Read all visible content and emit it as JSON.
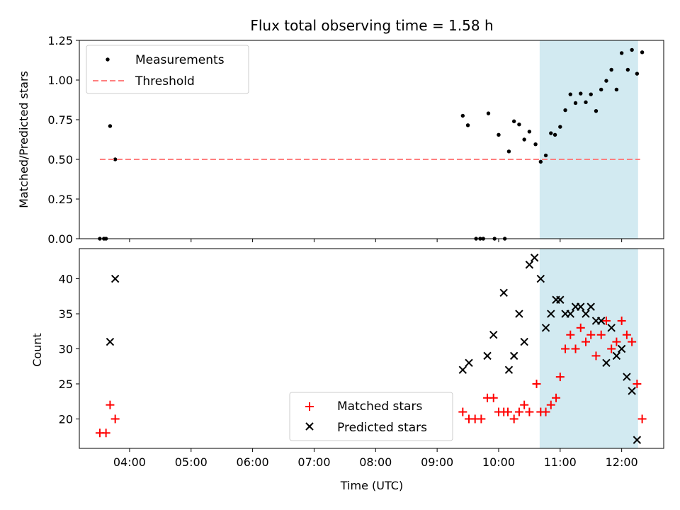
{
  "chart_data": [
    {
      "type": "scatter",
      "title": "Flux total observing time = 1.58 h",
      "xlabel": "",
      "ylabel": "Matched/Predicted stars",
      "ylim": [
        0,
        1.25
      ],
      "yticks": [
        "0.00",
        "0.25",
        "0.50",
        "0.75",
        "1.00",
        "1.25"
      ],
      "xlim": [
        "03:11",
        "12:41"
      ],
      "shaded_interval": [
        "10:40",
        "12:16"
      ],
      "shade_color": "#add8e6",
      "legend": {
        "position": "upper-left",
        "entries": [
          "Measurements",
          "Threshold"
        ]
      },
      "series": [
        {
          "name": "Measurements",
          "marker": "dot",
          "color": "#000000",
          "points": [
            [
              "03:31",
              0.0
            ],
            [
              "03:35",
              0.0
            ],
            [
              "03:37",
              0.0
            ],
            [
              "03:41",
              0.71
            ],
            [
              "03:46",
              0.5
            ],
            [
              "09:25",
              0.775
            ],
            [
              "09:30",
              0.715
            ],
            [
              "09:38",
              0.0
            ],
            [
              "09:42",
              0.0
            ],
            [
              "09:45",
              0.0
            ],
            [
              "09:50",
              0.79
            ],
            [
              "09:56",
              0.0
            ],
            [
              "10:00",
              0.655
            ],
            [
              "10:06",
              0.0
            ],
            [
              "10:10",
              0.55
            ],
            [
              "10:15",
              0.74
            ],
            [
              "10:20",
              0.72
            ],
            [
              "10:25",
              0.625
            ],
            [
              "10:30",
              0.675
            ],
            [
              "10:36",
              0.595
            ],
            [
              "10:41",
              0.485
            ],
            [
              "10:46",
              0.525
            ],
            [
              "10:51",
              0.665
            ],
            [
              "10:55",
              0.655
            ],
            [
              "11:00",
              0.705
            ],
            [
              "11:05",
              0.81
            ],
            [
              "11:10",
              0.91
            ],
            [
              "11:15",
              0.855
            ],
            [
              "11:20",
              0.915
            ],
            [
              "11:25",
              0.86
            ],
            [
              "11:30",
              0.91
            ],
            [
              "11:35",
              0.805
            ],
            [
              "11:40",
              0.94
            ],
            [
              "11:45",
              0.995
            ],
            [
              "11:50",
              1.065
            ],
            [
              "11:55",
              0.94
            ],
            [
              "12:00",
              1.17
            ],
            [
              "12:06",
              1.065
            ],
            [
              "12:10",
              1.19
            ],
            [
              "12:15",
              1.04
            ],
            [
              "12:20",
              1.175
            ]
          ]
        },
        {
          "name": "Threshold",
          "style": "dashed",
          "color": "#ff7f7f",
          "points": [
            [
              "03:31",
              0.5
            ],
            [
              "12:18",
              0.5
            ]
          ]
        }
      ]
    },
    {
      "type": "scatter",
      "title": "",
      "xlabel": "Time (UTC)",
      "ylabel": "Count",
      "ylim": [
        15.8,
        44.3
      ],
      "yticks": [
        "20",
        "25",
        "30",
        "35",
        "40"
      ],
      "xlim": [
        "03:11",
        "12:41"
      ],
      "xticks": [
        "04:00",
        "05:00",
        "06:00",
        "07:00",
        "08:00",
        "09:00",
        "10:00",
        "11:00",
        "12:00"
      ],
      "shaded_interval": [
        "10:40",
        "12:16"
      ],
      "shade_color": "#add8e6",
      "legend": {
        "position": "lower-center",
        "entries": [
          "Matched stars",
          "Predicted stars"
        ]
      },
      "series": [
        {
          "name": "Matched stars",
          "marker": "plus",
          "color": "#ff0000",
          "points": [
            [
              "03:31",
              18
            ],
            [
              "03:37",
              18
            ],
            [
              "03:41",
              22
            ],
            [
              "03:46",
              20
            ],
            [
              "09:25",
              21
            ],
            [
              "09:31",
              20
            ],
            [
              "09:37",
              20
            ],
            [
              "09:43",
              20
            ],
            [
              "09:49",
              23
            ],
            [
              "09:55",
              23
            ],
            [
              "10:00",
              21
            ],
            [
              "10:05",
              21
            ],
            [
              "10:09",
              21
            ],
            [
              "10:15",
              20
            ],
            [
              "10:20",
              21
            ],
            [
              "10:25",
              22
            ],
            [
              "10:30",
              21
            ],
            [
              "10:37",
              25
            ],
            [
              "10:41",
              21
            ],
            [
              "10:46",
              21
            ],
            [
              "10:51",
              22
            ],
            [
              "10:56",
              23
            ],
            [
              "11:00",
              26
            ],
            [
              "11:05",
              30
            ],
            [
              "11:10",
              32
            ],
            [
              "11:15",
              30
            ],
            [
              "11:20",
              33
            ],
            [
              "11:25",
              31
            ],
            [
              "11:30",
              32
            ],
            [
              "11:35",
              29
            ],
            [
              "11:40",
              32
            ],
            [
              "11:45",
              34
            ],
            [
              "11:50",
              30
            ],
            [
              "11:55",
              31
            ],
            [
              "12:00",
              34
            ],
            [
              "12:05",
              32
            ],
            [
              "12:10",
              31
            ],
            [
              "12:15",
              25
            ],
            [
              "12:20",
              20
            ]
          ]
        },
        {
          "name": "Predicted stars",
          "marker": "x",
          "color": "#000000",
          "points": [
            [
              "03:41",
              31
            ],
            [
              "03:46",
              40
            ],
            [
              "09:25",
              27
            ],
            [
              "09:31",
              28
            ],
            [
              "09:49",
              29
            ],
            [
              "09:55",
              32
            ],
            [
              "10:05",
              38
            ],
            [
              "10:10",
              27
            ],
            [
              "10:15",
              29
            ],
            [
              "10:20",
              35
            ],
            [
              "10:25",
              31
            ],
            [
              "10:30",
              42
            ],
            [
              "10:35",
              43
            ],
            [
              "10:41",
              40
            ],
            [
              "10:46",
              33
            ],
            [
              "10:51",
              35
            ],
            [
              "10:56",
              37
            ],
            [
              "11:00",
              37
            ],
            [
              "11:05",
              35
            ],
            [
              "11:10",
              35
            ],
            [
              "11:15",
              36
            ],
            [
              "11:20",
              36
            ],
            [
              "11:25",
              35
            ],
            [
              "11:30",
              36
            ],
            [
              "11:35",
              34
            ],
            [
              "11:40",
              34
            ],
            [
              "11:45",
              28
            ],
            [
              "11:50",
              33
            ],
            [
              "11:55",
              29
            ],
            [
              "12:00",
              30
            ],
            [
              "12:05",
              26
            ],
            [
              "12:10",
              24
            ],
            [
              "12:15",
              17
            ]
          ]
        }
      ]
    }
  ]
}
